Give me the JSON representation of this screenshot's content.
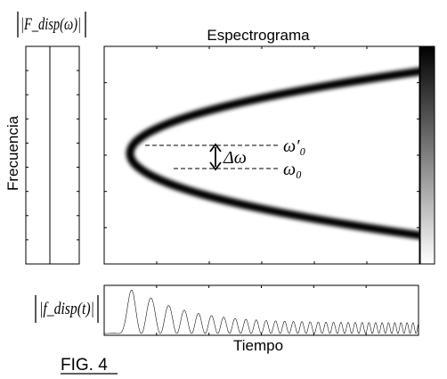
{
  "figure": {
    "label": "FIG. 4"
  },
  "spectrogram": {
    "title": "Espectrograma",
    "ylabel": "Frecuencia",
    "annotation_upper": "ω′₀",
    "annotation_lower": "ω₀",
    "annotation_delta": "Δω"
  },
  "left_panel": {
    "label": "|F_disp(ω)|"
  },
  "bottom_panel": {
    "label": "|f_disp(t)|",
    "xlabel": "Tiempo"
  }
}
